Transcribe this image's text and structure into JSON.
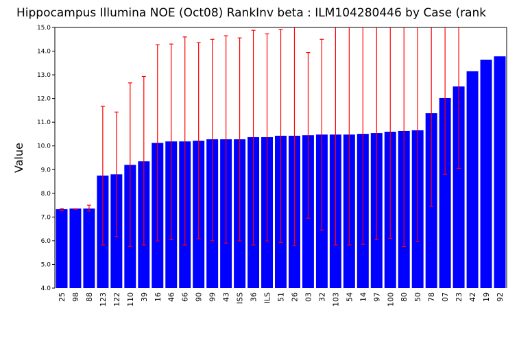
{
  "chart_data": {
    "type": "bar",
    "title": "Hippocampus Illumina NOE (Oct08) RankInv beta : ILM104280446 by Case (rank",
    "xlabel": "",
    "ylabel": "Value",
    "ylim": [
      4.0,
      15.0
    ],
    "yticks": [
      "4.0",
      "5.0",
      "6.0",
      "7.0",
      "8.0",
      "9.0",
      "10.0",
      "11.0",
      "12.0",
      "13.0",
      "14.0",
      "15.0"
    ],
    "grid": false,
    "colors": {
      "bar": "#0000ff",
      "error": "#ff0000"
    },
    "categories": [
      "25",
      "98",
      "88",
      "123",
      "122",
      "110",
      "39",
      "16",
      "46",
      "66",
      "90",
      "99",
      "43",
      "ISS",
      "36",
      "ILS",
      "51",
      "26",
      "03",
      "32",
      "103",
      "54",
      "14",
      "97",
      "100",
      "80",
      "50",
      "78",
      "07",
      "23",
      "42",
      "19",
      "92"
    ],
    "values": [
      7.33,
      7.36,
      7.36,
      8.75,
      8.8,
      9.2,
      9.35,
      10.13,
      10.19,
      10.19,
      10.22,
      10.28,
      10.28,
      10.28,
      10.37,
      10.37,
      10.43,
      10.43,
      10.45,
      10.48,
      10.48,
      10.48,
      10.51,
      10.54,
      10.6,
      10.63,
      10.66,
      11.38,
      12.02,
      12.51,
      13.15,
      13.64,
      13.78
    ],
    "error_upper": [
      7.36,
      7.35,
      7.5,
      11.67,
      11.43,
      12.66,
      12.93,
      14.27,
      14.3,
      14.6,
      14.36,
      14.5,
      14.65,
      14.56,
      14.88,
      14.73,
      14.92,
      15.0,
      13.94,
      14.5,
      15.0,
      15.0,
      15.0,
      15.0,
      15.0,
      15.0,
      15.0,
      15.0,
      15.0,
      15.0,
      null,
      null,
      null
    ],
    "error_lower": [
      7.28,
      7.33,
      7.25,
      5.82,
      6.17,
      5.76,
      5.82,
      5.99,
      6.05,
      5.82,
      6.08,
      6.0,
      5.9,
      5.99,
      5.82,
      5.99,
      5.93,
      5.8,
      6.95,
      6.45,
      5.82,
      5.82,
      5.85,
      6.05,
      6.1,
      5.75,
      5.97,
      7.45,
      8.8,
      9.05,
      null,
      null,
      null
    ]
  }
}
